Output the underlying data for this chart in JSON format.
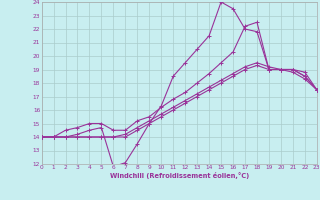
{
  "xlabel": "Windchill (Refroidissement éolien,°C)",
  "background_color": "#c8eef0",
  "grid_color": "#aacccc",
  "line_color": "#993399",
  "xlim": [
    0,
    23
  ],
  "ylim": [
    12,
    24
  ],
  "xticks": [
    0,
    1,
    2,
    3,
    4,
    5,
    6,
    7,
    8,
    9,
    10,
    11,
    12,
    13,
    14,
    15,
    16,
    17,
    18,
    19,
    20,
    21,
    22,
    23
  ],
  "yticks": [
    12,
    13,
    14,
    15,
    16,
    17,
    18,
    19,
    20,
    21,
    22,
    23,
    24
  ],
  "curves": [
    {
      "x": [
        0,
        1,
        2,
        3,
        4,
        5,
        6,
        7,
        8,
        9,
        10,
        11,
        12,
        13,
        14,
        15,
        16,
        17,
        18,
        19,
        20,
        21,
        22,
        23
      ],
      "y": [
        14,
        14,
        14,
        14.2,
        14.5,
        14.7,
        11.8,
        12.1,
        13.5,
        15.0,
        16.3,
        18.5,
        19.5,
        20.5,
        21.5,
        24.0,
        23.5,
        22.0,
        21.8,
        19.0,
        19.0,
        19.0,
        18.5,
        17.5
      ]
    },
    {
      "x": [
        0,
        1,
        2,
        3,
        4,
        5,
        6,
        7,
        8,
        9,
        10,
        11,
        12,
        13,
        14,
        15,
        16,
        17,
        18,
        19,
        20,
        21,
        22,
        23
      ],
      "y": [
        14,
        14,
        14.5,
        14.7,
        15.0,
        15.0,
        14.5,
        14.5,
        15.2,
        15.5,
        16.2,
        16.8,
        17.3,
        18.0,
        18.7,
        19.5,
        20.3,
        22.2,
        22.5,
        19.0,
        19.0,
        19.0,
        18.5,
        17.5
      ]
    },
    {
      "x": [
        0,
        1,
        2,
        3,
        4,
        5,
        6,
        7,
        8,
        9,
        10,
        11,
        12,
        13,
        14,
        15,
        16,
        17,
        18,
        19,
        20,
        21,
        22,
        23
      ],
      "y": [
        14,
        14,
        14,
        14,
        14,
        14,
        14.0,
        14.2,
        14.7,
        15.2,
        15.7,
        16.2,
        16.7,
        17.2,
        17.7,
        18.2,
        18.7,
        19.2,
        19.5,
        19.2,
        19.0,
        19.0,
        18.8,
        17.5
      ]
    },
    {
      "x": [
        0,
        1,
        2,
        3,
        4,
        5,
        6,
        7,
        8,
        9,
        10,
        11,
        12,
        13,
        14,
        15,
        16,
        17,
        18,
        19,
        20,
        21,
        22,
        23
      ],
      "y": [
        14,
        14,
        14,
        14,
        14,
        14,
        14.0,
        14.0,
        14.5,
        15.0,
        15.5,
        16.0,
        16.5,
        17.0,
        17.5,
        18.0,
        18.5,
        19.0,
        19.3,
        19.0,
        19.0,
        18.8,
        18.3,
        17.5
      ]
    }
  ]
}
